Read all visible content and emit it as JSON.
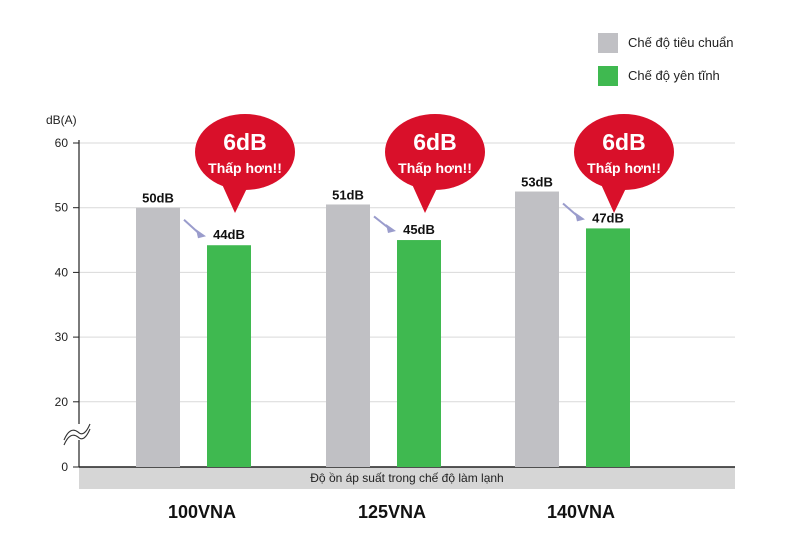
{
  "chart_data": {
    "type": "bar",
    "ylabel": "dB(A)",
    "yticks": [
      0,
      20,
      30,
      40,
      50,
      60
    ],
    "axis_break": true,
    "legend_position": "top-right",
    "categories": [
      "100VNA",
      "125VNA",
      "140VNA"
    ],
    "series": [
      {
        "name": "Chế độ tiêu chuẩn",
        "color": "#c0c0c4",
        "values": [
          50,
          50.5,
          52.5
        ],
        "labels": [
          "50dB",
          "51dB",
          "53dB"
        ]
      },
      {
        "name": "Chế độ yên tĩnh",
        "color": "#3fb950",
        "values": [
          44.2,
          45,
          46.8
        ],
        "labels": [
          "44dB",
          "45dB",
          "47dB"
        ]
      }
    ],
    "callouts": [
      {
        "big": "6dB",
        "small": "Thấp hơn!!"
      },
      {
        "big": "6dB",
        "small": "Thấp hơn!!"
      },
      {
        "big": "6dB",
        "small": "Thấp hơn!!"
      }
    ],
    "xaxis_band_text": "Độ ồn áp suất trong chế độ làm lạnh"
  },
  "colors": {
    "callout": "#d9102a",
    "arrow": "#9a9ccc",
    "grid": "#d9d9d9",
    "band": "#d6d6d6"
  }
}
